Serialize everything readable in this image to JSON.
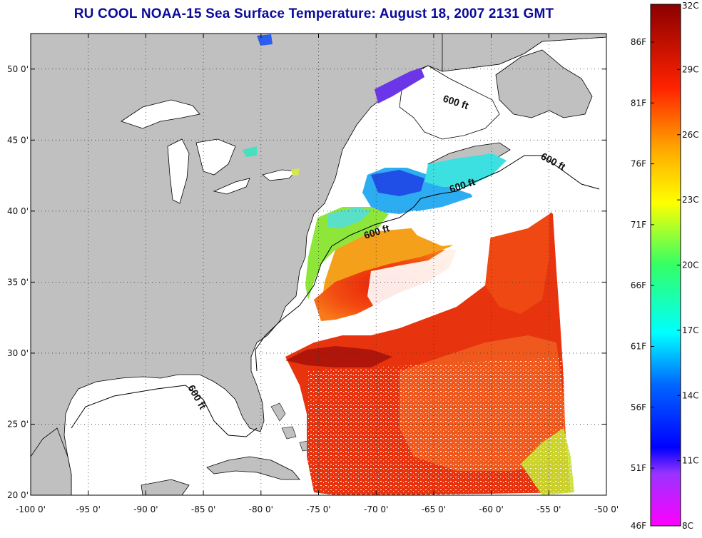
{
  "title": "RU COOL  NOAA-15  Sea Surface Temperature:  August 18, 2007 2131 GMT",
  "map": {
    "lon_range": [
      -100,
      -50
    ],
    "lat_range": [
      20,
      52.5
    ],
    "lon_ticks": [
      "-100 0'",
      "-95 0'",
      "-90 0'",
      "-85 0'",
      "-80 0'",
      "-75 0'",
      "-70 0'",
      "-65 0'",
      "-60 0'",
      "-55 0'",
      "-50 0'"
    ],
    "lat_ticks": [
      "20 0'",
      "25 0'",
      "30 0'",
      "35 0'",
      "40 0'",
      "45 0'",
      "50 0'"
    ],
    "land_color": "#c0c0c0",
    "grid": "dotted",
    "contour_labels": [
      "600 ft",
      "600 ft",
      "600 ft",
      "600 ft",
      "600 ft"
    ]
  },
  "colorbar": {
    "fahrenheit_labels": [
      "86F",
      "81F",
      "76F",
      "71F",
      "66F",
      "61F",
      "56F",
      "51F",
      "46F"
    ],
    "celsius_labels": [
      "32C",
      "29C",
      "26C",
      "23C",
      "20C",
      "17C",
      "14C",
      "11C",
      "8C"
    ],
    "range_c": [
      8,
      32
    ]
  }
}
